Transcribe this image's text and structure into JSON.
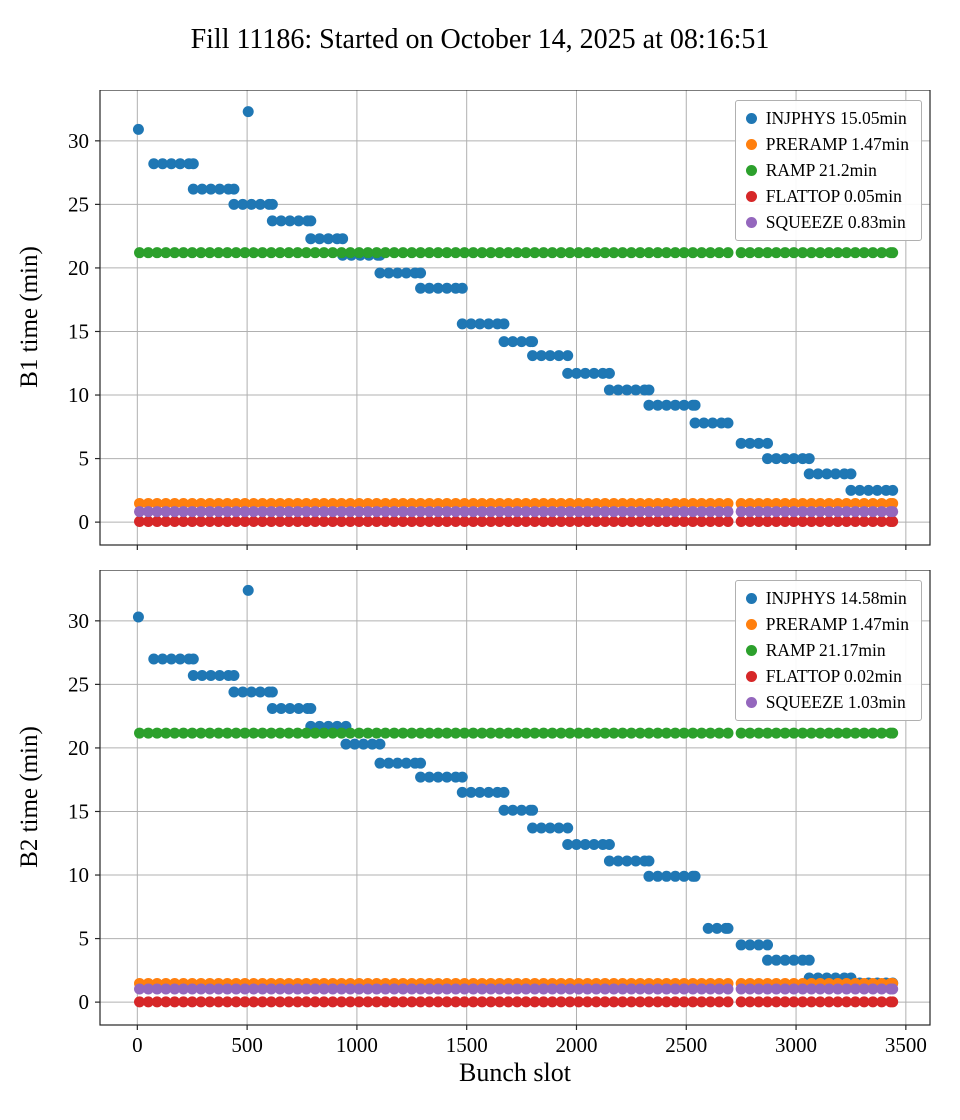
{
  "page": {
    "title": "Fill 11186: Started on October 14, 2025 at 08:16:51"
  },
  "chart_data": [
    {
      "type": "scatter",
      "subplot": "top",
      "ylabel": "B1 time (min)",
      "xlabel": "",
      "xlim": [
        -170,
        3610
      ],
      "ylim": [
        -1.8,
        34
      ],
      "xticks": [
        0,
        500,
        1000,
        1500,
        2000,
        2500,
        3000,
        3500
      ],
      "yticks": [
        0,
        5,
        10,
        15,
        20,
        25,
        30
      ],
      "show_xticklabels": false,
      "grid": true,
      "legend_position": "upper right",
      "series": [
        {
          "name": "INJPHYS 15.05min",
          "color": "#1f77b4",
          "points": [
            [
              5,
              30.9
            ],
            [
              505,
              32.3
            ]
          ],
          "steps": [
            [
              75,
              255,
              28.2
            ],
            [
              255,
              440,
              26.2
            ],
            [
              440,
              615,
              25.0
            ],
            [
              615,
              790,
              23.7
            ],
            [
              790,
              935,
              22.3
            ],
            [
              935,
              1105,
              21.0
            ],
            [
              1105,
              1290,
              19.6
            ],
            [
              1290,
              1480,
              18.4
            ],
            [
              1480,
              1670,
              15.6
            ],
            [
              1670,
              1800,
              14.2
            ],
            [
              1800,
              1960,
              13.1
            ],
            [
              1960,
              2150,
              11.7
            ],
            [
              2150,
              2330,
              10.4
            ],
            [
              2330,
              2540,
              9.2
            ],
            [
              2540,
              2690,
              7.8
            ],
            [
              2750,
              2870,
              6.2
            ],
            [
              2870,
              3060,
              5.0
            ],
            [
              3060,
              3250,
              3.8
            ],
            [
              3250,
              3440,
              2.5
            ]
          ]
        },
        {
          "name": "PRERAMP 1.47min",
          "color": "#ff7f0e",
          "points": [],
          "steps": [
            [
              10,
              2690,
              1.47
            ],
            [
              2750,
              3440,
              1.47
            ]
          ]
        },
        {
          "name": "RAMP 21.2min",
          "color": "#2ca02c",
          "points": [],
          "steps": [
            [
              10,
              2690,
              21.2
            ],
            [
              2750,
              3440,
              21.2
            ]
          ]
        },
        {
          "name": "FLATTOP 0.05min",
          "color": "#d62728",
          "points": [],
          "steps": [
            [
              10,
              2690,
              0.05
            ],
            [
              2750,
              3440,
              0.05
            ]
          ]
        },
        {
          "name": "SQUEEZE 0.83min",
          "color": "#9467bd",
          "points": [],
          "steps": [
            [
              10,
              2690,
              0.83
            ],
            [
              2750,
              3440,
              0.83
            ]
          ]
        }
      ]
    },
    {
      "type": "scatter",
      "subplot": "bottom",
      "ylabel": "B2 time (min)",
      "xlabel": "Bunch slot",
      "xlim": [
        -170,
        3610
      ],
      "ylim": [
        -1.8,
        34
      ],
      "xticks": [
        0,
        500,
        1000,
        1500,
        2000,
        2500,
        3000,
        3500
      ],
      "yticks": [
        0,
        5,
        10,
        15,
        20,
        25,
        30
      ],
      "show_xticklabels": true,
      "grid": true,
      "legend_position": "upper right",
      "series": [
        {
          "name": "INJPHYS 14.58min",
          "color": "#1f77b4",
          "points": [
            [
              5,
              30.3
            ],
            [
              505,
              32.4
            ]
          ],
          "steps": [
            [
              75,
              255,
              27.0
            ],
            [
              255,
              440,
              25.7
            ],
            [
              440,
              615,
              24.4
            ],
            [
              615,
              790,
              23.1
            ],
            [
              790,
              950,
              21.7
            ],
            [
              950,
              1105,
              20.3
            ],
            [
              1105,
              1290,
              18.8
            ],
            [
              1290,
              1480,
              17.7
            ],
            [
              1480,
              1670,
              16.5
            ],
            [
              1670,
              1800,
              15.1
            ],
            [
              1800,
              1960,
              13.7
            ],
            [
              1960,
              2150,
              12.4
            ],
            [
              2150,
              2330,
              11.1
            ],
            [
              2330,
              2540,
              9.9
            ],
            [
              2600,
              2690,
              5.8
            ],
            [
              2750,
              2870,
              4.5
            ],
            [
              2870,
              3060,
              3.3
            ],
            [
              3060,
              3250,
              1.9
            ],
            [
              3250,
              3440,
              1.5
            ]
          ]
        },
        {
          "name": "PRERAMP 1.47min",
          "color": "#ff7f0e",
          "points": [],
          "steps": [
            [
              10,
              2690,
              1.47
            ],
            [
              2750,
              3440,
              1.47
            ]
          ]
        },
        {
          "name": "RAMP 21.17min",
          "color": "#2ca02c",
          "points": [],
          "steps": [
            [
              10,
              2690,
              21.17
            ],
            [
              2750,
              3440,
              21.17
            ]
          ]
        },
        {
          "name": "FLATTOP 0.02min",
          "color": "#d62728",
          "points": [],
          "steps": [
            [
              10,
              2690,
              0.02
            ],
            [
              2750,
              3440,
              0.02
            ]
          ]
        },
        {
          "name": "SQUEEZE 1.03min",
          "color": "#9467bd",
          "points": [],
          "steps": [
            [
              10,
              2690,
              1.03
            ],
            [
              2750,
              3440,
              1.03
            ]
          ]
        }
      ]
    }
  ],
  "style": {
    "grid_color": "#b0b0b0",
    "frame_color": "#262626",
    "tick_label_color": "#000000"
  }
}
